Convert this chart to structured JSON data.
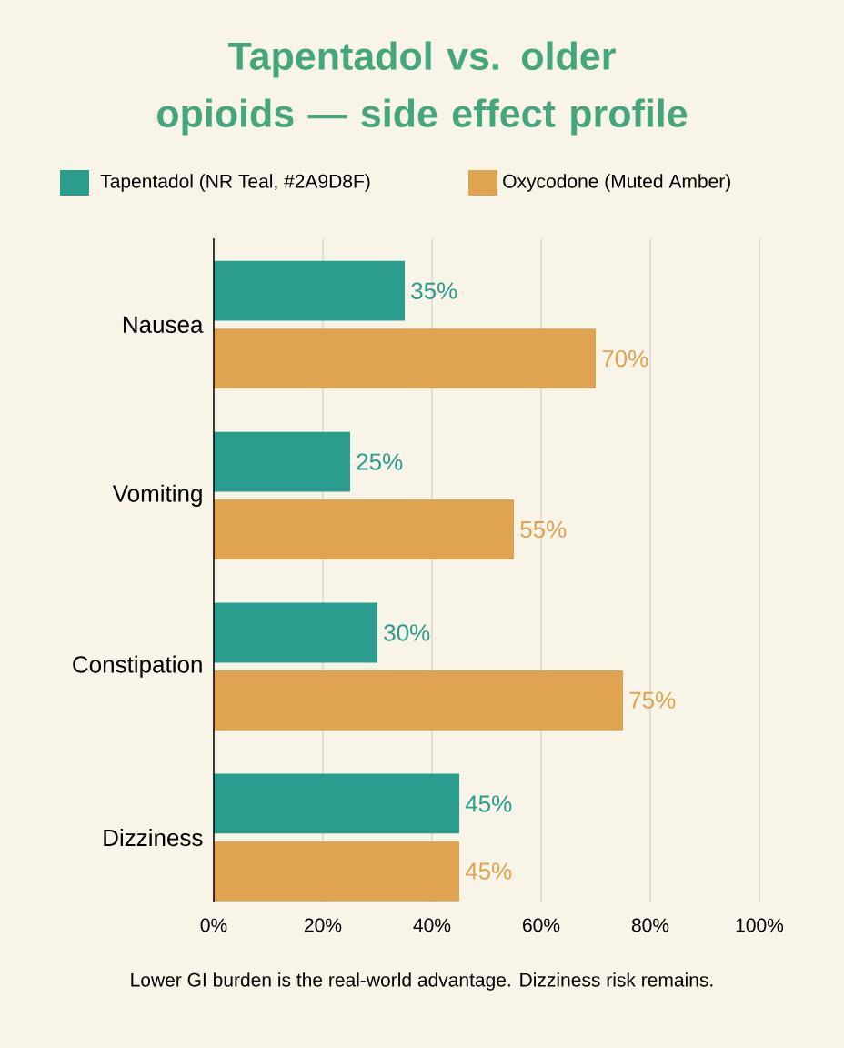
{
  "chart_data": {
    "type": "bar",
    "orientation": "horizontal",
    "title": "Tapentadol vs. older opioids — side effect profile",
    "categories": [
      "Nausea",
      "Vomiting",
      "Constipation",
      "Dizziness"
    ],
    "series": [
      {
        "name": "Tapentadol (NR Teal, #2A9D8F)",
        "color": "#2a9d8f",
        "values": [
          35,
          25,
          30,
          45
        ],
        "value_labels": [
          "35%",
          "25%",
          "30%",
          "45%"
        ]
      },
      {
        "name": "Oxycodone (Muted Amber)",
        "color": "#e0a352",
        "values": [
          70,
          55,
          75,
          45
        ],
        "value_labels": [
          "70%",
          "55%",
          "75%",
          "45%"
        ]
      }
    ],
    "xlim": [
      0,
      100
    ],
    "xticks": [
      {
        "value": 0,
        "label": "0%"
      },
      {
        "value": 20,
        "label": "20%"
      },
      {
        "value": 40,
        "label": "40%"
      },
      {
        "value": 60,
        "label": "60%"
      },
      {
        "value": 80,
        "label": "80%"
      },
      {
        "value": 100,
        "label": "100%"
      }
    ],
    "grid": "x",
    "legend": "top",
    "annotations": [
      "Lower GI burden is the real-world advantage. Dizziness risk remains."
    ]
  }
}
